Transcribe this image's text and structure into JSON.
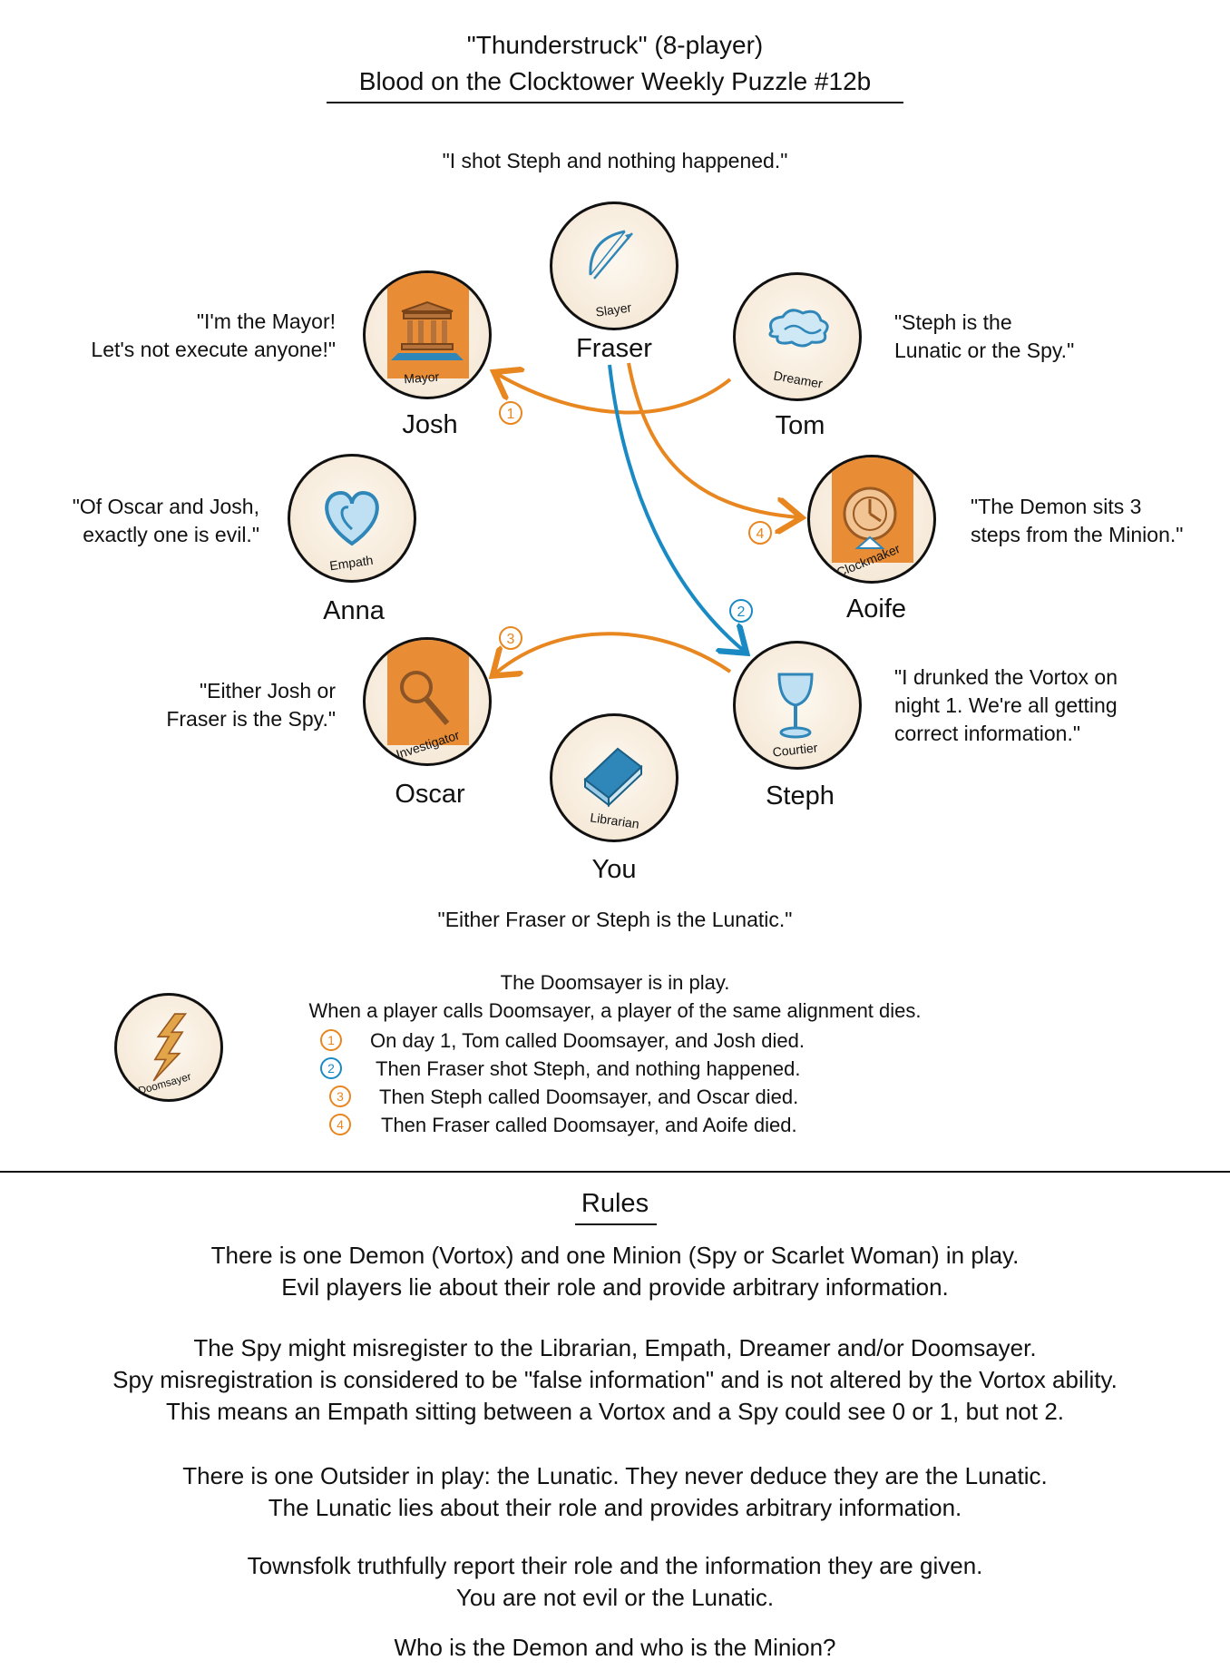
{
  "title": {
    "line1": "\"Thunderstruck\" (8-player)",
    "line2": "Blood on the Clocktower Weekly Puzzle #12b"
  },
  "players": [
    {
      "name": "Fraser",
      "role": "Slayer",
      "quote": "\"I shot Steph and nothing happened.\""
    },
    {
      "name": "Tom",
      "role": "Dreamer",
      "quote": [
        "\"Steph is the",
        "Lunatic or the Spy.\""
      ]
    },
    {
      "name": "Aoife",
      "role": "Clockmaker",
      "quote": [
        "\"The Demon sits 3",
        "steps from the Minion.\""
      ]
    },
    {
      "name": "Steph",
      "role": "Courtier",
      "quote": [
        "\"I drunked the Vortox on",
        "night 1. We're all getting",
        "correct information.\""
      ]
    },
    {
      "name": "You",
      "role": "Librarian",
      "quote": "\"Either Fraser or Steph is the Lunatic.\""
    },
    {
      "name": "Oscar",
      "role": "Investigator",
      "quote": [
        "\"Either Josh or",
        "Fraser is the Spy.\""
      ]
    },
    {
      "name": "Anna",
      "role": "Empath",
      "quote": [
        "\"Of Oscar and Josh,",
        "exactly one is evil.\""
      ]
    },
    {
      "name": "Josh",
      "role": "Mayor",
      "quote": [
        "\"I'm the Mayor!",
        "Let's not execute anyone!\""
      ]
    }
  ],
  "arrows": [
    {
      "number": "1",
      "from": "Tom",
      "to": "Josh",
      "color": "#e8861f"
    },
    {
      "number": "2",
      "from": "Fraser",
      "to": "Steph",
      "color": "#1a8ac4"
    },
    {
      "number": "3",
      "from": "Steph",
      "to": "Oscar",
      "color": "#e8861f"
    },
    {
      "number": "4",
      "from": "Fraser",
      "to": "Aoife",
      "color": "#e8861f"
    }
  ],
  "doomsayer": {
    "role": "Doomsayer",
    "line1": "The Doomsayer is in play.",
    "line2": "When a player calls Doomsayer, a player of the same alignment dies.",
    "events": [
      {
        "number": "1",
        "text": "On day 1, Tom called Doomsayer, and Josh died."
      },
      {
        "number": "2",
        "text": "Then Fraser shot Steph, and nothing happened."
      },
      {
        "number": "3",
        "text": "Then Steph called Doomsayer, and Oscar died."
      },
      {
        "number": "4",
        "text": "Then Fraser called Doomsayer, and Aoife died."
      }
    ]
  },
  "rules": {
    "heading": "Rules",
    "p1": [
      "There is one Demon (Vortox) and one Minion (Spy or Scarlet Woman) in play.",
      "Evil players lie about their role and provide arbitrary information."
    ],
    "p2": [
      "The Spy might misregister to the Librarian, Empath, Dreamer and/or Doomsayer.",
      "Spy misregistration is considered to be \"false information\" and is not altered by the Vortox ability.",
      "This means an Empath sitting between a Vortox and a Spy could see 0 or 1, but not 2."
    ],
    "p3": [
      "There is one Outsider in play: the Lunatic. They never deduce they are the Lunatic.",
      "The Lunatic lies about their role and provides arbitrary information."
    ],
    "p4": [
      "Townsfolk truthfully report their role and the information they are given.",
      "You are not evil or the Lunatic."
    ],
    "question": "Who is the Demon and who is the Minion?"
  },
  "colors": {
    "orange": "#e8861f",
    "blue": "#1a8ac4",
    "evil_banner": "#e88d36",
    "token_bg": "#f6ead9"
  }
}
